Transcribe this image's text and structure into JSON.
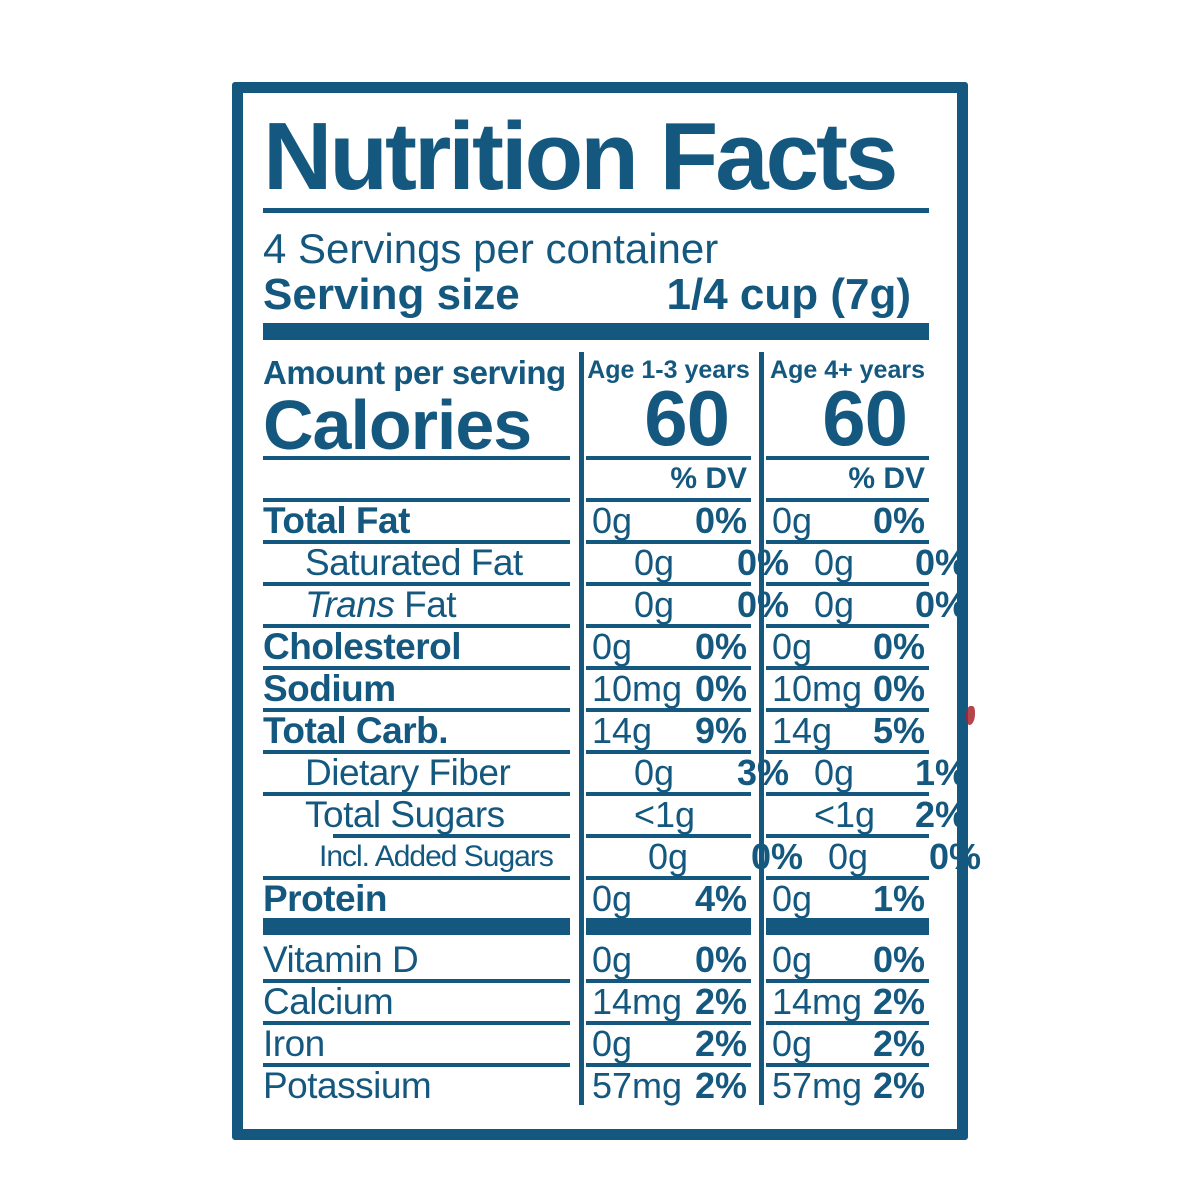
{
  "colors": {
    "blue": "#14587F",
    "accent_red": "#A8232E",
    "background": "#FFFFFF"
  },
  "header": {
    "title": "Nutrition Facts",
    "servings_per_container": "4 Servings per container",
    "serving_size_label": "Serving size",
    "serving_size_value": "1/4 cup (7g)"
  },
  "calories_section": {
    "amount_per_serving_label": "Amount per serving",
    "calories_label": "Calories",
    "dv_header": "% DV",
    "columns": [
      {
        "header": "Age 1-3 years",
        "calories": "60"
      },
      {
        "header": "Age 4+ years",
        "calories": "60"
      }
    ]
  },
  "nutrient_rows": [
    {
      "label": "Total Fat",
      "bold": true,
      "indent": 0,
      "cols": [
        {
          "amount": "0g",
          "dv": "0%"
        },
        {
          "amount": "0g",
          "dv": "0%"
        }
      ]
    },
    {
      "label": "Saturated Fat",
      "bold": false,
      "indent": 1,
      "cols": [
        {
          "amount": "0g",
          "dv": "0%"
        },
        {
          "amount": "0g",
          "dv": "0%"
        }
      ]
    },
    {
      "label": "Fat",
      "italic_prefix": "Trans",
      "bold": false,
      "indent": 1,
      "cols": [
        {
          "amount": "0g",
          "dv": "0%"
        },
        {
          "amount": "0g",
          "dv": "0%"
        }
      ]
    },
    {
      "label": "Cholesterol",
      "bold": true,
      "indent": 0,
      "cols": [
        {
          "amount": "0g",
          "dv": "0%"
        },
        {
          "amount": "0g",
          "dv": "0%"
        }
      ]
    },
    {
      "label": "Sodium",
      "bold": true,
      "indent": 0,
      "cols": [
        {
          "amount": "10mg",
          "dv": "0%"
        },
        {
          "amount": "10mg",
          "dv": "0%"
        }
      ]
    },
    {
      "label": "Total Carb.",
      "bold": true,
      "indent": 0,
      "cols": [
        {
          "amount": "14g",
          "dv": "9%"
        },
        {
          "amount": "14g",
          "dv": "5%"
        }
      ]
    },
    {
      "label": "Dietary Fiber",
      "bold": false,
      "indent": 1,
      "cols": [
        {
          "amount": "0g",
          "dv": "3%"
        },
        {
          "amount": "0g",
          "dv": "1%"
        }
      ]
    },
    {
      "label": "Total Sugars",
      "bold": false,
      "indent": 1,
      "cols": [
        {
          "amount": "<1g",
          "dv": ""
        },
        {
          "amount": "<1g",
          "dv": "2%"
        }
      ]
    },
    {
      "label": "Incl. Added Sugars",
      "bold": false,
      "indent": 2,
      "rule_indent": true,
      "cols": [
        {
          "amount": "0g",
          "dv": "0%"
        },
        {
          "amount": "0g",
          "dv": "0%"
        }
      ]
    },
    {
      "label": "Protein",
      "bold": true,
      "indent": 0,
      "cols": [
        {
          "amount": "0g",
          "dv": "4%"
        },
        {
          "amount": "0g",
          "dv": "1%"
        }
      ]
    }
  ],
  "vitamin_rows": [
    {
      "label": "Vitamin D",
      "cols": [
        {
          "amount": "0g",
          "dv": "0%"
        },
        {
          "amount": "0g",
          "dv": "0%"
        }
      ]
    },
    {
      "label": "Calcium",
      "cols": [
        {
          "amount": "14mg",
          "dv": "2%"
        },
        {
          "amount": "14mg",
          "dv": "2%"
        }
      ]
    },
    {
      "label": "Iron",
      "cols": [
        {
          "amount": "0g",
          "dv": "2%"
        },
        {
          "amount": "0g",
          "dv": "2%"
        }
      ]
    },
    {
      "label": "Potassium",
      "cols": [
        {
          "amount": "57mg",
          "dv": "2%"
        },
        {
          "amount": "57mg",
          "dv": "2%"
        }
      ]
    }
  ]
}
